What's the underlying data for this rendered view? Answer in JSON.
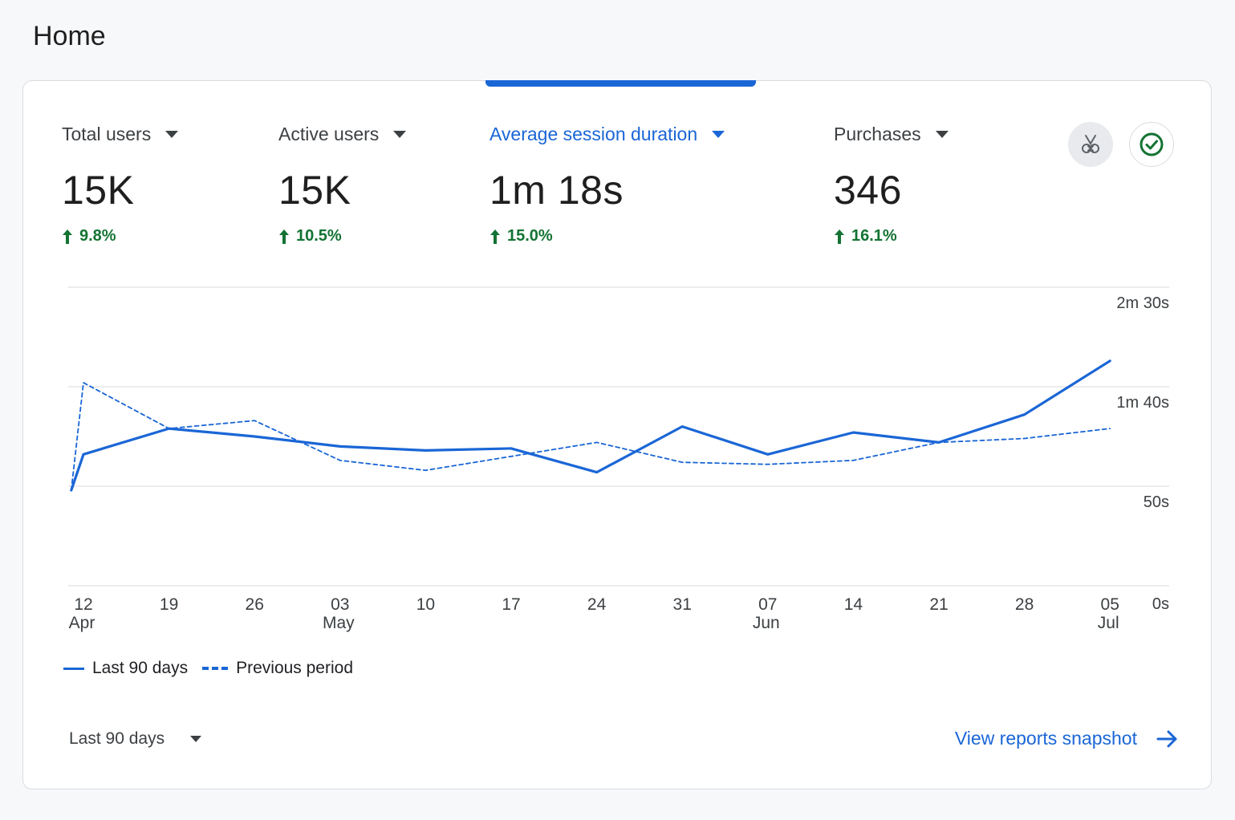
{
  "page": {
    "title": "Home"
  },
  "metrics": [
    {
      "label": "Total users",
      "value": "15K",
      "change": "9.8%",
      "active": false
    },
    {
      "label": "Active users",
      "value": "15K",
      "change": "10.5%",
      "active": false
    },
    {
      "label": "Average session duration",
      "value": "1m 18s",
      "change": "15.0%",
      "active": true
    },
    {
      "label": "Purchases",
      "value": "346",
      "change": "16.1%",
      "active": false
    }
  ],
  "icons": {
    "insights": "insights-sparkle-icon",
    "check": "check-circle-icon"
  },
  "colors": {
    "accent": "#1a66d6",
    "positive": "#137333",
    "grid": "#e6e6e6"
  },
  "chart_data": {
    "type": "line",
    "x_ticks": [
      {
        "day": "12",
        "month": "Apr"
      },
      {
        "day": "19",
        "month": ""
      },
      {
        "day": "26",
        "month": ""
      },
      {
        "day": "03",
        "month": "May"
      },
      {
        "day": "10",
        "month": ""
      },
      {
        "day": "17",
        "month": ""
      },
      {
        "day": "24",
        "month": ""
      },
      {
        "day": "31",
        "month": ""
      },
      {
        "day": "07",
        "month": "Jun"
      },
      {
        "day": "14",
        "month": ""
      },
      {
        "day": "21",
        "month": ""
      },
      {
        "day": "28",
        "month": ""
      },
      {
        "day": "05",
        "month": "Jul"
      }
    ],
    "y_ticks": [
      {
        "label": "2m 30s",
        "seconds": 150
      },
      {
        "label": "1m 40s",
        "seconds": 100
      },
      {
        "label": "50s",
        "seconds": 50
      },
      {
        "label": "0s",
        "seconds": 0
      }
    ],
    "ylim": [
      0,
      150
    ],
    "series": [
      {
        "name": "Last 90 days",
        "style": "solid",
        "points": [
          {
            "x": "2025-04-11",
            "y": 48
          },
          {
            "x": "2025-04-12",
            "y": 66
          },
          {
            "x": "2025-04-19",
            "y": 79
          },
          {
            "x": "2025-04-26",
            "y": 75
          },
          {
            "x": "2025-05-03",
            "y": 70
          },
          {
            "x": "2025-05-10",
            "y": 68
          },
          {
            "x": "2025-05-17",
            "y": 69
          },
          {
            "x": "2025-05-24",
            "y": 57
          },
          {
            "x": "2025-05-31",
            "y": 80
          },
          {
            "x": "2025-06-07",
            "y": 66
          },
          {
            "x": "2025-06-14",
            "y": 77
          },
          {
            "x": "2025-06-21",
            "y": 72
          },
          {
            "x": "2025-06-28",
            "y": 86
          },
          {
            "x": "2025-07-05",
            "y": 113
          }
        ]
      },
      {
        "name": "Previous period",
        "style": "dashed",
        "points": [
          {
            "x": "2025-04-11",
            "y": 48
          },
          {
            "x": "2025-04-12",
            "y": 102
          },
          {
            "x": "2025-04-19",
            "y": 79
          },
          {
            "x": "2025-04-26",
            "y": 83
          },
          {
            "x": "2025-05-03",
            "y": 63
          },
          {
            "x": "2025-05-10",
            "y": 58
          },
          {
            "x": "2025-05-17",
            "y": 65
          },
          {
            "x": "2025-05-24",
            "y": 72
          },
          {
            "x": "2025-05-31",
            "y": 62
          },
          {
            "x": "2025-06-07",
            "y": 61
          },
          {
            "x": "2025-06-14",
            "y": 63
          },
          {
            "x": "2025-06-21",
            "y": 72
          },
          {
            "x": "2025-06-28",
            "y": 74
          },
          {
            "x": "2025-07-05",
            "y": 79
          }
        ]
      }
    ],
    "legend": [
      {
        "label": "Last 90 days",
        "style": "solid"
      },
      {
        "label": "Previous period",
        "style": "dashed"
      }
    ],
    "grid": true,
    "legend_position": "bottom-left"
  },
  "footer": {
    "range_label": "Last 90 days",
    "snapshot_label": "View reports snapshot"
  }
}
